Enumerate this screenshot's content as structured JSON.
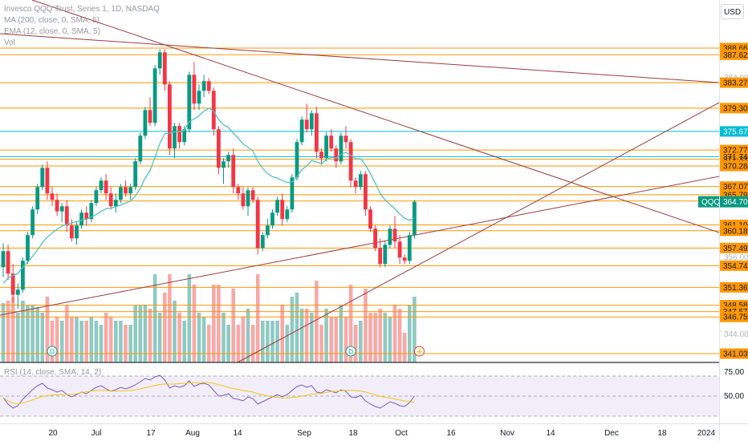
{
  "legend": {
    "title": "Invesco QQQ Trust, Series 1, 1D, NASDAQ",
    "ma": "MA (200, close, 0, SMA, 5)",
    "ema": "EMA (12, close, 0, SMA, 5)",
    "vol": "Vol"
  },
  "currency": "USD",
  "symbol_label": "QQQ",
  "last_price": "364.70",
  "colors": {
    "up": "#089981",
    "down": "#f23645",
    "vol_up": "#8fcac2",
    "vol_down": "#f7a9a7",
    "level_line": "#ff9800",
    "level_label_bg": "#ff9800",
    "cyan_level": "#00bcd4",
    "trend_line": "#9c3b3b",
    "ema_line": "#4fc3c6",
    "rsi_line": "#7e57c2",
    "rsi_ma": "#f5c518"
  },
  "chart_data": {
    "type": "candlestick",
    "price_levels": [
      388.66,
      387.62,
      383.27,
      379.3,
      372.77,
      371.33,
      370.28,
      367.07,
      365.79,
      364.82,
      361.1,
      360.18,
      357.49,
      354.74,
      351.36,
      348.58,
      347.57,
      346.75,
      341.03
    ],
    "cyan_levels": [
      375.67,
      371.74
    ],
    "faint_price_ticks": [
      "384.00",
      "356.00",
      "344.00"
    ],
    "last_price": 364.7,
    "x_tick_labels": [
      "20",
      "Jul",
      "17",
      "Aug",
      "14",
      "Sep",
      "18",
      "Oct",
      "16",
      "Nov",
      "14",
      "Dec",
      "18",
      "2024"
    ],
    "rsi": {
      "label": "RSI (14, close, SMA, 14, 2)",
      "levels": [
        "75.00",
        "50.00"
      ]
    },
    "event_markers": [
      "D",
      "D"
    ],
    "candles": [
      [
        354.5,
        358.2,
        353.0,
        357.0
      ],
      [
        357.0,
        358.0,
        352.5,
        353.5
      ],
      [
        353.5,
        355.0,
        349.0,
        350.2
      ],
      [
        350.2,
        352.0,
        348.0,
        351.0
      ],
      [
        351.0,
        356.0,
        350.5,
        355.5
      ],
      [
        355.5,
        360.0,
        355.0,
        359.5
      ],
      [
        359.5,
        364.0,
        359.0,
        363.5
      ],
      [
        363.5,
        367.5,
        362.8,
        367.0
      ],
      [
        367.0,
        370.5,
        366.5,
        370.0
      ],
      [
        370.0,
        371.0,
        365.0,
        366.0
      ],
      [
        366.0,
        367.0,
        364.0,
        365.0
      ],
      [
        365.0,
        366.0,
        362.5,
        363.2
      ],
      [
        363.2,
        364.5,
        361.5,
        364.0
      ],
      [
        364.0,
        365.0,
        360.0,
        361.0
      ],
      [
        361.0,
        362.0,
        358.5,
        359.0
      ],
      [
        359.0,
        361.5,
        358.0,
        361.0
      ],
      [
        361.0,
        363.5,
        360.5,
        363.0
      ],
      [
        363.0,
        364.0,
        361.0,
        362.0
      ],
      [
        362.0,
        365.0,
        361.5,
        364.5
      ],
      [
        364.5,
        367.0,
        364.0,
        366.5
      ],
      [
        366.5,
        368.5,
        366.0,
        368.0
      ],
      [
        368.0,
        369.0,
        365.0,
        366.0
      ],
      [
        366.0,
        367.0,
        363.5,
        364.0
      ],
      [
        364.0,
        366.0,
        363.0,
        365.0
      ],
      [
        365.0,
        367.5,
        364.5,
        367.0
      ],
      [
        367.0,
        368.0,
        365.5,
        366.0
      ],
      [
        366.0,
        367.5,
        365.0,
        367.0
      ],
      [
        367.0,
        371.5,
        366.5,
        371.0
      ],
      [
        371.0,
        375.5,
        370.5,
        375.0
      ],
      [
        375.0,
        379.5,
        374.5,
        379.0
      ],
      [
        379.0,
        381.0,
        376.5,
        377.0
      ],
      [
        377.0,
        386.0,
        376.5,
        385.5
      ],
      [
        385.5,
        388.5,
        384.5,
        388.0
      ],
      [
        388.0,
        388.5,
        382.0,
        383.0
      ],
      [
        383.0,
        383.5,
        372.0,
        373.0
      ],
      [
        373.0,
        377.0,
        371.5,
        376.5
      ],
      [
        376.5,
        377.0,
        373.0,
        374.0
      ],
      [
        374.0,
        376.5,
        373.5,
        376.0
      ],
      [
        376.0,
        385.0,
        375.5,
        384.5
      ],
      [
        384.5,
        386.5,
        379.0,
        380.0
      ],
      [
        380.0,
        383.0,
        379.0,
        382.0
      ],
      [
        382.0,
        384.5,
        381.0,
        383.5
      ],
      [
        383.5,
        384.0,
        381.5,
        382.0
      ],
      [
        382.0,
        382.5,
        375.0,
        376.0
      ],
      [
        376.0,
        376.5,
        369.0,
        370.0
      ],
      [
        370.0,
        371.5,
        367.5,
        371.0
      ],
      [
        371.0,
        372.5,
        370.0,
        372.0
      ],
      [
        372.0,
        373.0,
        366.0,
        367.0
      ],
      [
        367.0,
        367.5,
        365.0,
        366.0
      ],
      [
        366.0,
        367.0,
        363.5,
        364.0
      ],
      [
        364.0,
        367.0,
        362.5,
        366.5
      ],
      [
        366.5,
        367.0,
        364.5,
        365.0
      ],
      [
        365.0,
        365.5,
        356.5,
        357.5
      ],
      [
        357.5,
        360.0,
        357.0,
        359.5
      ],
      [
        359.5,
        362.0,
        359.0,
        361.0
      ],
      [
        361.0,
        363.5,
        360.5,
        363.0
      ],
      [
        363.0,
        365.5,
        362.5,
        365.0
      ],
      [
        365.0,
        366.0,
        361.0,
        362.0
      ],
      [
        362.0,
        364.0,
        361.5,
        363.5
      ],
      [
        363.5,
        369.0,
        363.0,
        368.5
      ],
      [
        368.5,
        374.5,
        368.0,
        374.0
      ],
      [
        374.0,
        378.0,
        373.5,
        377.5
      ],
      [
        377.5,
        380.0,
        375.5,
        376.0
      ],
      [
        376.0,
        379.0,
        375.0,
        378.5
      ],
      [
        378.5,
        379.5,
        371.5,
        372.5
      ],
      [
        372.5,
        373.0,
        370.5,
        371.5
      ],
      [
        371.5,
        375.5,
        371.0,
        375.0
      ],
      [
        375.0,
        376.0,
        372.5,
        373.0
      ],
      [
        373.0,
        373.5,
        370.0,
        371.0
      ],
      [
        371.0,
        375.5,
        370.5,
        375.0
      ],
      [
        375.0,
        376.5,
        373.0,
        374.0
      ],
      [
        374.0,
        374.5,
        367.0,
        368.0
      ],
      [
        368.0,
        368.5,
        366.0,
        367.0
      ],
      [
        367.0,
        369.5,
        366.5,
        369.0
      ],
      [
        369.0,
        369.5,
        362.5,
        363.5
      ],
      [
        363.5,
        364.0,
        360.0,
        360.5
      ],
      [
        360.5,
        361.0,
        357.0,
        357.5
      ],
      [
        357.5,
        359.0,
        354.5,
        355.0
      ],
      [
        355.0,
        358.5,
        354.5,
        358.0
      ],
      [
        358.0,
        361.0,
        357.5,
        360.5
      ],
      [
        360.5,
        362.5,
        357.5,
        358.5
      ],
      [
        358.5,
        359.5,
        355.0,
        356.0
      ],
      [
        356.0,
        356.5,
        355.0,
        355.5
      ],
      [
        355.5,
        360.0,
        355.0,
        359.5
      ],
      [
        359.5,
        365.0,
        359.0,
        364.7
      ]
    ],
    "ema": [
      352.0,
      352.8,
      353.2,
      353.5,
      354.5,
      355.3,
      356.2,
      357.2,
      358.3,
      359.2,
      359.8,
      360.4,
      360.9,
      361.2,
      361.4,
      361.6,
      361.8,
      362.0,
      362.3,
      362.7,
      363.2,
      363.6,
      363.7,
      363.9,
      364.2,
      364.5,
      364.8,
      365.6,
      366.8,
      368.4,
      369.6,
      371.6,
      373.8,
      375.3,
      375.4,
      375.6,
      375.6,
      375.8,
      377.2,
      377.6,
      378.1,
      378.8,
      379.3,
      378.8,
      377.5,
      376.7,
      376.3,
      375.4,
      374.6,
      373.7,
      373.2,
      372.6,
      371.0,
      369.9,
      369.1,
      368.6,
      368.4,
      368.0,
      367.7,
      367.8,
      368.6,
      369.7,
      370.3,
      371.1,
      370.9,
      370.6,
      371.3,
      371.6,
      371.5,
      372.1,
      372.4,
      371.9,
      371.4,
      371.4,
      370.4,
      369.1,
      367.6,
      366.0,
      365.0,
      364.3,
      363.6,
      362.8,
      362.1,
      361.8,
      362.2
    ],
    "rsi_values": [
      48,
      40,
      35,
      38,
      46,
      52,
      58,
      63,
      66,
      60,
      58,
      55,
      57,
      52,
      49,
      52,
      55,
      53,
      57,
      61,
      63,
      59,
      56,
      58,
      61,
      59,
      61,
      64,
      68,
      72,
      70,
      74,
      76,
      70,
      60,
      63,
      61,
      63,
      69,
      62,
      65,
      66,
      64,
      57,
      50,
      51,
      53,
      47,
      46,
      44,
      49,
      47,
      40,
      43,
      46,
      49,
      52,
      49,
      52,
      57,
      62,
      64,
      61,
      63,
      55,
      54,
      58,
      56,
      54,
      58,
      56,
      49,
      48,
      51,
      44,
      40,
      37,
      35,
      39,
      43,
      41,
      38,
      37,
      42,
      50
    ]
  }
}
